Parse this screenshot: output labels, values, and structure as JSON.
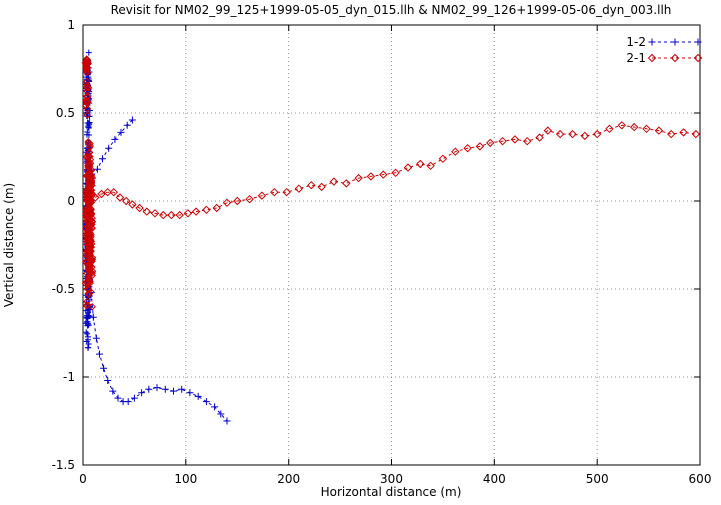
{
  "chart_data": {
    "type": "scatter",
    "title": "Revisit for NM02_99_125+1999-05-05_dyn_015.llh & NM02_99_126+1999-05-06_dyn_003.llh",
    "xlabel": "Horizontal distance (m)",
    "ylabel": "Vertical distance (m)",
    "xlim": [
      0,
      600
    ],
    "ylim": [
      -1.5,
      1
    ],
    "xticks": [
      0,
      100,
      200,
      300,
      400,
      500,
      600
    ],
    "yticks": [
      -1.5,
      -1,
      -0.5,
      0,
      0.5,
      1
    ],
    "grid": true,
    "grid_style": "dotted",
    "legend_position": "top-right-inside",
    "background": "#ffffff",
    "border_color": "#000000",
    "series": [
      {
        "name": "1-2",
        "color": "#0000cc",
        "marker": "plus",
        "line": "dashed",
        "clusters": [
          {
            "xc": 5,
            "xh": 2.5,
            "yc": -0.15,
            "yh": 0.7,
            "count": 300,
            "seed": 11
          },
          {
            "xc": 5,
            "xh": 2.0,
            "yc": 0.62,
            "yh": 0.25,
            "count": 70,
            "seed": 12
          }
        ],
        "trails": [
          [
            [
              5,
              0.08
            ],
            [
              9,
              0.13
            ],
            [
              14,
              0.18
            ],
            [
              19,
              0.24
            ],
            [
              25,
              0.3
            ],
            [
              31,
              0.35
            ],
            [
              37,
              0.39
            ],
            [
              43,
              0.43
            ],
            [
              48,
              0.46
            ]
          ],
          [
            [
              6,
              -0.35
            ],
            [
              8,
              -0.52
            ],
            [
              10,
              -0.66
            ],
            [
              13,
              -0.78
            ],
            [
              16,
              -0.87
            ],
            [
              20,
              -0.95
            ],
            [
              24,
              -1.02
            ],
            [
              29,
              -1.08
            ],
            [
              34,
              -1.12
            ],
            [
              39,
              -1.14
            ],
            [
              44,
              -1.14
            ],
            [
              50,
              -1.12
            ],
            [
              57,
              -1.09
            ],
            [
              64,
              -1.07
            ],
            [
              72,
              -1.06
            ],
            [
              80,
              -1.07
            ],
            [
              88,
              -1.08
            ],
            [
              96,
              -1.07
            ],
            [
              104,
              -1.09
            ],
            [
              112,
              -1.11
            ],
            [
              120,
              -1.14
            ],
            [
              128,
              -1.17
            ],
            [
              134,
              -1.21
            ],
            [
              140,
              -1.25
            ]
          ]
        ]
      },
      {
        "name": "2-1",
        "color": "#cc0000",
        "marker": "diamond",
        "line": "dashed",
        "clusters": [
          {
            "xc": 6,
            "xh": 4.0,
            "yc": -0.12,
            "yh": 0.52,
            "count": 300,
            "seed": 21
          },
          {
            "xc": 4,
            "xh": 2.0,
            "yc": 0.78,
            "yh": 0.06,
            "count": 25,
            "seed": 22
          },
          {
            "xc": 4,
            "xh": 1.5,
            "yc": 0.58,
            "yh": 0.14,
            "count": 18,
            "seed": 23
          }
        ],
        "trails": [
          [
            [
              12,
              0.02
            ],
            [
              18,
              0.04
            ],
            [
              24,
              0.05
            ],
            [
              30,
              0.05
            ],
            [
              36,
              0.02
            ],
            [
              42,
              0.0
            ],
            [
              48,
              -0.02
            ],
            [
              55,
              -0.04
            ],
            [
              62,
              -0.06
            ],
            [
              70,
              -0.07
            ],
            [
              78,
              -0.08
            ],
            [
              86,
              -0.08
            ],
            [
              94,
              -0.08
            ],
            [
              102,
              -0.07
            ],
            [
              110,
              -0.06
            ],
            [
              120,
              -0.05
            ],
            [
              130,
              -0.04
            ],
            [
              140,
              -0.01
            ],
            [
              150,
              0.0
            ],
            [
              162,
              0.01
            ],
            [
              174,
              0.03
            ],
            [
              186,
              0.05
            ],
            [
              198,
              0.05
            ],
            [
              210,
              0.07
            ],
            [
              222,
              0.09
            ],
            [
              232,
              0.08
            ],
            [
              244,
              0.11
            ],
            [
              256,
              0.1
            ],
            [
              268,
              0.13
            ],
            [
              280,
              0.14
            ],
            [
              292,
              0.15
            ],
            [
              304,
              0.16
            ],
            [
              316,
              0.19
            ],
            [
              328,
              0.21
            ],
            [
              338,
              0.2
            ],
            [
              350,
              0.24
            ],
            [
              362,
              0.28
            ],
            [
              374,
              0.3
            ],
            [
              386,
              0.31
            ],
            [
              396,
              0.33
            ],
            [
              408,
              0.34
            ],
            [
              420,
              0.35
            ],
            [
              432,
              0.34
            ],
            [
              444,
              0.36
            ],
            [
              452,
              0.4
            ],
            [
              464,
              0.38
            ],
            [
              476,
              0.38
            ],
            [
              488,
              0.37
            ],
            [
              500,
              0.38
            ],
            [
              512,
              0.41
            ],
            [
              524,
              0.43
            ],
            [
              536,
              0.42
            ],
            [
              548,
              0.41
            ],
            [
              560,
              0.4
            ],
            [
              572,
              0.38
            ],
            [
              584,
              0.39
            ],
            [
              596,
              0.38
            ]
          ]
        ]
      }
    ]
  }
}
